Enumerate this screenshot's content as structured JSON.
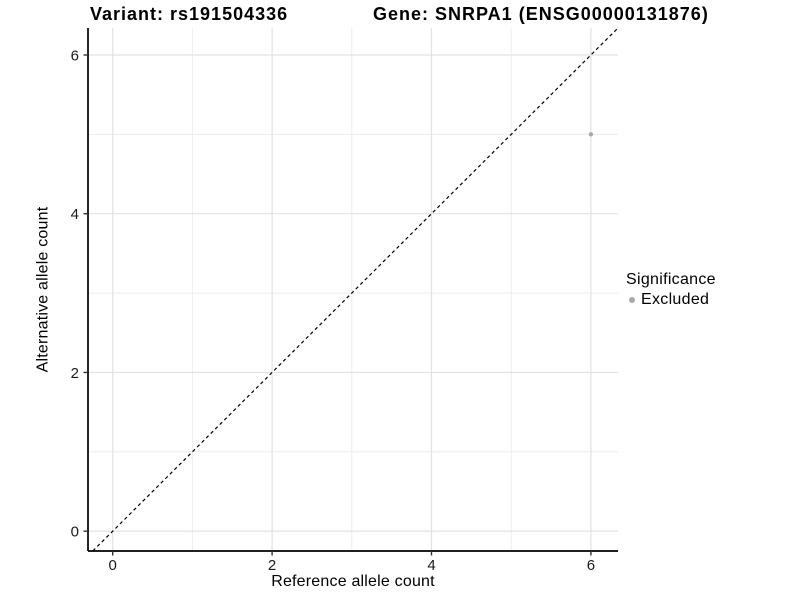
{
  "header": {
    "title_left": "Variant: rs191504336",
    "title_right": "Gene: SNRPA1 (ENSG00000131876)"
  },
  "chart_data": {
    "type": "scatter",
    "title": "Variant: rs191504336   Gene: SNRPA1 (ENSG00000131876)",
    "xlabel": "Reference allele count",
    "ylabel": "Alternative allele count",
    "xlim": [
      -0.31,
      6.34
    ],
    "ylim": [
      -0.25,
      6.34
    ],
    "x_major_ticks": [
      0,
      2,
      4,
      6
    ],
    "y_major_ticks": [
      0,
      2,
      4,
      6
    ],
    "x_minor_ticks": [
      1,
      3,
      5
    ],
    "y_minor_ticks": [
      1,
      3,
      5
    ],
    "series": [
      {
        "name": "Excluded",
        "color": "#a9a9a9",
        "points": [
          {
            "x": 6,
            "y": 5
          }
        ]
      }
    ],
    "reference_line": {
      "equation": "y = x",
      "style": "dashed",
      "color": "#000000"
    },
    "legend": {
      "title": "Significance",
      "position": "right",
      "items": [
        {
          "label": "Excluded",
          "color": "#a9a9a9"
        }
      ]
    },
    "grid": {
      "major": true,
      "minor": true,
      "major_color": "#e2e2e2",
      "minor_color": "#ececec"
    },
    "colors": {
      "background": "#ffffff",
      "axis_line": "#000000",
      "tick": "#333333",
      "text": "#000000"
    }
  }
}
